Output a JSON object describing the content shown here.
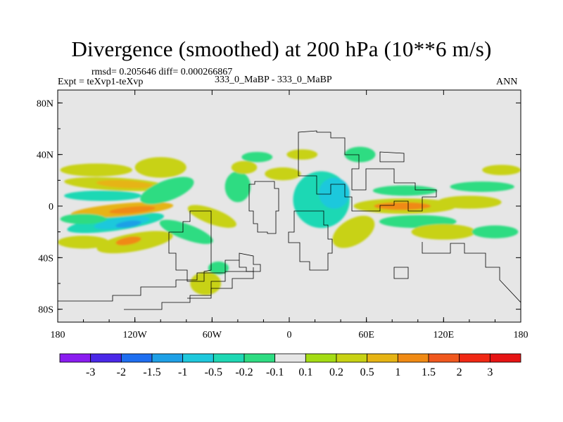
{
  "chart_data": {
    "type": "heatmap",
    "title": "Divergence (smoothed) at 200 hPa (10**6 m/s)",
    "stats_label": "rmsd= 0.205646 diff= 0.000266867",
    "experiment_label": "Expt = teXvp1-teXvp",
    "case_label": "333_0_MaBP - 333_0_MaBP",
    "season_label": "ANN",
    "x_ticks": [
      {
        "value": -180,
        "label": "180"
      },
      {
        "value": -120,
        "label": "120W"
      },
      {
        "value": -60,
        "label": "60W"
      },
      {
        "value": 0,
        "label": "0"
      },
      {
        "value": 60,
        "label": "60E"
      },
      {
        "value": 120,
        "label": "120E"
      },
      {
        "value": 180,
        "label": "180"
      }
    ],
    "y_ticks": [
      {
        "value": 80,
        "label": "80N"
      },
      {
        "value": 40,
        "label": "40N"
      },
      {
        "value": 0,
        "label": "0"
      },
      {
        "value": -40,
        "label": "40S"
      },
      {
        "value": -80,
        "label": "80S"
      }
    ],
    "xlim": [
      -180,
      180
    ],
    "ylim": [
      -90,
      90
    ],
    "levels": [
      "-3",
      "-2",
      "-1.5",
      "-1",
      "-0.5",
      "-0.2",
      "-0.1",
      "0.1",
      "0.2",
      "0.5",
      "1",
      "1.5",
      "2",
      "3"
    ],
    "colors": [
      "#8a1cf0",
      "#4a28e8",
      "#1e6ef0",
      "#1ea0e6",
      "#1ec8dc",
      "#1ed8b4",
      "#2edc82",
      "#e6e6e6",
      "#a4dc14",
      "#c8d214",
      "#e6b414",
      "#f08a14",
      "#f0581e",
      "#f02814",
      "#e61414"
    ],
    "fields": [
      {
        "lon": -135,
        "lat": -13,
        "rx": 38,
        "ry": 6,
        "level": 5,
        "rot": 8
      },
      {
        "lon": -130,
        "lat": -13,
        "rx": 22,
        "ry": 4,
        "level": 4,
        "rot": 8
      },
      {
        "lon": -125,
        "lat": -14,
        "rx": 10,
        "ry": 2.5,
        "level": 3,
        "rot": 8
      },
      {
        "lon": -130,
        "lat": -3,
        "rx": 40,
        "ry": 5,
        "level": 10,
        "rot": 5
      },
      {
        "lon": -122,
        "lat": -3,
        "rx": 18,
        "ry": 2.5,
        "level": 11,
        "rot": 5
      },
      {
        "lon": -135,
        "lat": 17,
        "rx": 40,
        "ry": 5,
        "level": 9,
        "rot": -3
      },
      {
        "lon": -128,
        "lat": 17,
        "rx": 22,
        "ry": 3,
        "level": 10,
        "rot": -3
      },
      {
        "lon": -145,
        "lat": 8,
        "rx": 30,
        "ry": 4,
        "level": 5,
        "rot": 0
      },
      {
        "lon": -150,
        "lat": 28,
        "rx": 28,
        "ry": 5,
        "level": 9,
        "rot": 0
      },
      {
        "lon": -100,
        "lat": 30,
        "rx": 20,
        "ry": 8,
        "level": 9,
        "rot": 0
      },
      {
        "lon": -95,
        "lat": 12,
        "rx": 22,
        "ry": 8,
        "level": 6,
        "rot": 20
      },
      {
        "lon": -120,
        "lat": -28,
        "rx": 30,
        "ry": 7,
        "level": 9,
        "rot": 10
      },
      {
        "lon": -125,
        "lat": -27,
        "rx": 10,
        "ry": 3,
        "level": 11,
        "rot": 10
      },
      {
        "lon": -160,
        "lat": -28,
        "rx": 20,
        "ry": 5,
        "level": 9,
        "rot": 0
      },
      {
        "lon": -160,
        "lat": -10,
        "rx": 18,
        "ry": 4,
        "level": 6,
        "rot": 0
      },
      {
        "lon": -80,
        "lat": -20,
        "rx": 22,
        "ry": 6,
        "level": 6,
        "rot": -20
      },
      {
        "lon": -60,
        "lat": -8,
        "rx": 20,
        "ry": 6,
        "level": 9,
        "rot": -20
      },
      {
        "lon": -65,
        "lat": -60,
        "rx": 12,
        "ry": 9,
        "level": 9,
        "rot": 0
      },
      {
        "lon": -55,
        "lat": -48,
        "rx": 8,
        "ry": 5,
        "level": 6,
        "rot": 0
      },
      {
        "lon": -40,
        "lat": 15,
        "rx": 10,
        "ry": 12,
        "level": 6,
        "rot": 0
      },
      {
        "lon": -35,
        "lat": 30,
        "rx": 10,
        "ry": 5,
        "level": 9,
        "rot": 0
      },
      {
        "lon": -25,
        "lat": 38,
        "rx": 12,
        "ry": 4,
        "level": 6,
        "rot": 0
      },
      {
        "lon": -5,
        "lat": 25,
        "rx": 14,
        "ry": 5,
        "level": 9,
        "rot": 0
      },
      {
        "lon": 10,
        "lat": 40,
        "rx": 12,
        "ry": 4,
        "level": 9,
        "rot": 0
      },
      {
        "lon": 25,
        "lat": 5,
        "rx": 22,
        "ry": 22,
        "level": 5,
        "rot": 0
      },
      {
        "lon": 35,
        "lat": 10,
        "rx": 12,
        "ry": 12,
        "level": 4,
        "rot": 0
      },
      {
        "lon": 50,
        "lat": -20,
        "rx": 18,
        "ry": 10,
        "level": 9,
        "rot": 30
      },
      {
        "lon": 55,
        "lat": 40,
        "rx": 12,
        "ry": 6,
        "level": 6,
        "rot": 0
      },
      {
        "lon": 90,
        "lat": 0,
        "rx": 40,
        "ry": 6,
        "level": 9,
        "rot": 0
      },
      {
        "lon": 88,
        "lat": 0,
        "rx": 22,
        "ry": 3,
        "level": 11,
        "rot": 0
      },
      {
        "lon": 100,
        "lat": -12,
        "rx": 30,
        "ry": 5,
        "level": 6,
        "rot": 0
      },
      {
        "lon": 90,
        "lat": 12,
        "rx": 25,
        "ry": 4,
        "level": 6,
        "rot": 0
      },
      {
        "lon": 140,
        "lat": 3,
        "rx": 25,
        "ry": 5,
        "level": 9,
        "rot": 0
      },
      {
        "lon": 150,
        "lat": 15,
        "rx": 25,
        "ry": 4,
        "level": 6,
        "rot": 0
      },
      {
        "lon": 165,
        "lat": 28,
        "rx": 15,
        "ry": 4,
        "level": 9,
        "rot": 0
      },
      {
        "lon": 120,
        "lat": -20,
        "rx": 25,
        "ry": 6,
        "level": 9,
        "rot": 0
      },
      {
        "lon": 160,
        "lat": -20,
        "rx": 18,
        "ry": 5,
        "level": 6,
        "rot": 0
      }
    ]
  },
  "colorbar": {
    "labels": [
      "-3",
      "-2",
      "-1.5",
      "-1",
      "-0.5",
      "-0.2",
      "-0.1",
      "0.1",
      "0.2",
      "0.5",
      "1",
      "1.5",
      "2",
      "3"
    ]
  }
}
